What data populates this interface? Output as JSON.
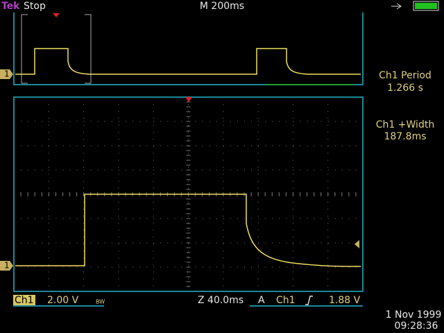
{
  "header": {
    "brand": "Tek",
    "state": "Stop",
    "timebase": "M 200ms"
  },
  "measurements": [
    {
      "label": "Ch1 Period",
      "value": "1.266 s"
    },
    {
      "label": "Ch1 +Width",
      "value": "187.8ms"
    }
  ],
  "status": {
    "channel": "Ch1",
    "scale": "2.00 V",
    "bandwidth": "BW",
    "zoom": "Z 40.0ms",
    "trigger_mode": "A",
    "trigger_source": "Ch1",
    "trigger_level": "1.88 V"
  },
  "markers": {
    "overview": "1",
    "main": "1"
  },
  "timestamp": {
    "date": "1 Nov 1999",
    "time": "09:28:36"
  }
}
